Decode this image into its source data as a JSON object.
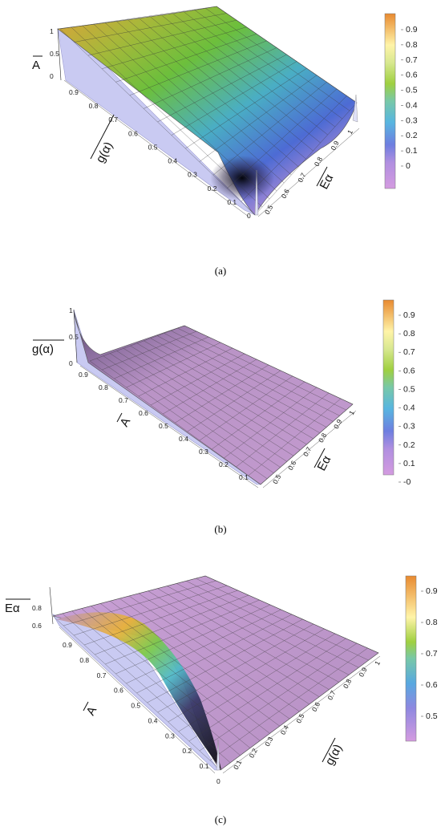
{
  "chart_data": [
    {
      "type": "surface3d",
      "caption": "(a)",
      "z_label": "A",
      "x_label": "g(α)",
      "y_label": "Eα",
      "z_ticks": [
        "1",
        "0.5",
        "0"
      ],
      "x_ticks": [
        "0.9",
        "0.8",
        "0.7",
        "0.6",
        "0.5",
        "0.4",
        "0.3",
        "0.2",
        "0.1",
        "0"
      ],
      "y_ticks": [
        "0.5",
        "0.6",
        "0.7",
        "0.8",
        "0.9",
        "1"
      ],
      "colorbar_ticks": [
        "0.9",
        "0.8",
        "0.7",
        "0.6",
        "0.5",
        "0.4",
        "0.3",
        "0.2",
        "0.1",
        "0"
      ],
      "colorbar_range": [
        -0.1,
        1.0
      ],
      "shape": "high ridge along the far g(α) edge decreasing toward the near edge, dark valley near the origin with a spike at the origin, small rise at the far-right corner",
      "colors": {
        "high": "#e8a33a",
        "mid_high": "#8bc34a",
        "mid": "#4fb8c8",
        "mid_low": "#4a6fd8",
        "low": "#c48fd8",
        "dark": "#111111",
        "wall": "#c9caf2"
      }
    },
    {
      "type": "surface3d",
      "caption": "(b)",
      "z_label": "g(α)",
      "x_label": "A",
      "y_label": "Eα",
      "z_ticks": [
        "1",
        "0.5",
        "0"
      ],
      "x_ticks": [
        "0.9",
        "0.8",
        "0.7",
        "0.6",
        "0.5",
        "0.4",
        "0.3",
        "0.2",
        "0.1"
      ],
      "y_ticks": [
        "0.5",
        "0.6",
        "0.7",
        "0.8",
        "0.9",
        "1"
      ],
      "colorbar_ticks": [
        "0.9",
        "0.8",
        "0.7",
        "0.6",
        "0.5",
        "0.4",
        "0.3",
        "0.2",
        "0.1",
        "-0"
      ],
      "colorbar_range": [
        -0.05,
        1.0
      ],
      "shape": "nearly flat low surface with a sharp rise to 1 at the far-left corner",
      "colors": {
        "surface": "#b993c6",
        "dark": "#3a2f4a",
        "wall": "#c9caf2"
      }
    },
    {
      "type": "surface3d",
      "caption": "(c)",
      "z_label": "Eα",
      "x_label": "A",
      "y_label": "g(α)",
      "z_ticks": [
        "0.8",
        "0.6"
      ],
      "x_ticks": [
        "0.9",
        "0.8",
        "0.7",
        "0.6",
        "0.5",
        "0.4",
        "0.3",
        "0.2",
        "0.1",
        "0"
      ],
      "y_ticks": [
        "0.1",
        "0.2",
        "0.3",
        "0.4",
        "0.5",
        "0.6",
        "0.7",
        "0.8",
        "0.9",
        "1"
      ],
      "colorbar_ticks": [
        "0.9",
        "0.8",
        "0.7",
        "0.6",
        "0.5"
      ],
      "colorbar_range": [
        0.43,
        1.0
      ],
      "shape": "flat purple plateau with a steep dark valley near the A axis and a colored ridge at its rim, spike at the origin",
      "colors": {
        "surface": "#b993c6",
        "ridge_hi": "#e8b13a",
        "ridge_mid": "#4fb8c8",
        "dark": "#111111",
        "wall": "#c9caf2"
      }
    }
  ]
}
